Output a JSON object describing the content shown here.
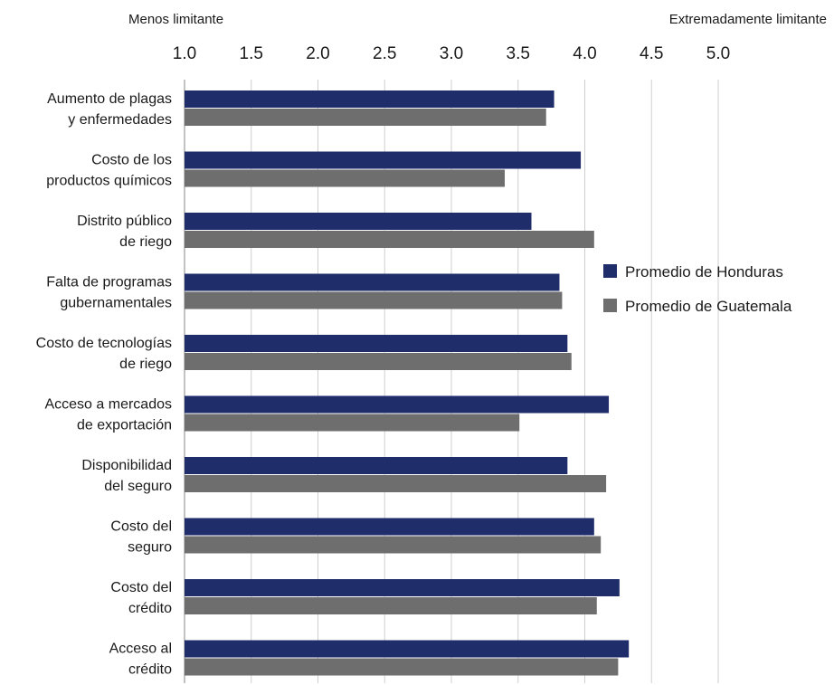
{
  "chart_data": {
    "type": "bar",
    "orientation": "horizontal",
    "top_left_label": "Menos limitante",
    "top_right_label": "Extremadamente limitante",
    "xlim": [
      1.0,
      5.0
    ],
    "xticks": [
      "1.0",
      "1.5",
      "2.0",
      "2.5",
      "3.0",
      "3.5",
      "4.0",
      "4.5",
      "5.0"
    ],
    "grid": true,
    "legend_position": "right",
    "categories": [
      [
        "Aumento de plagas",
        "y enfermedades"
      ],
      [
        "Costo de los",
        "productos químicos"
      ],
      [
        "Distrito público",
        "de riego"
      ],
      [
        "Falta de programas",
        "gubernamentales"
      ],
      [
        "Costo de tecnologías",
        "de riego"
      ],
      [
        "Acceso a mercados",
        "de exportación"
      ],
      [
        "Disponibilidad",
        "del seguro"
      ],
      [
        "Costo del",
        "seguro"
      ],
      [
        "Costo del",
        "crédito"
      ],
      [
        "Acceso al",
        "crédito"
      ]
    ],
    "series": [
      {
        "name": "Promedio de Honduras",
        "color": "#1f2d6b",
        "values": [
          3.77,
          3.97,
          3.6,
          3.81,
          3.87,
          4.18,
          3.87,
          4.07,
          4.26,
          4.33
        ]
      },
      {
        "name": "Promedio de Guatemala",
        "color": "#6e6e6e",
        "values": [
          3.71,
          3.4,
          4.07,
          3.83,
          3.9,
          3.51,
          4.16,
          4.12,
          4.09,
          4.25
        ]
      }
    ]
  }
}
